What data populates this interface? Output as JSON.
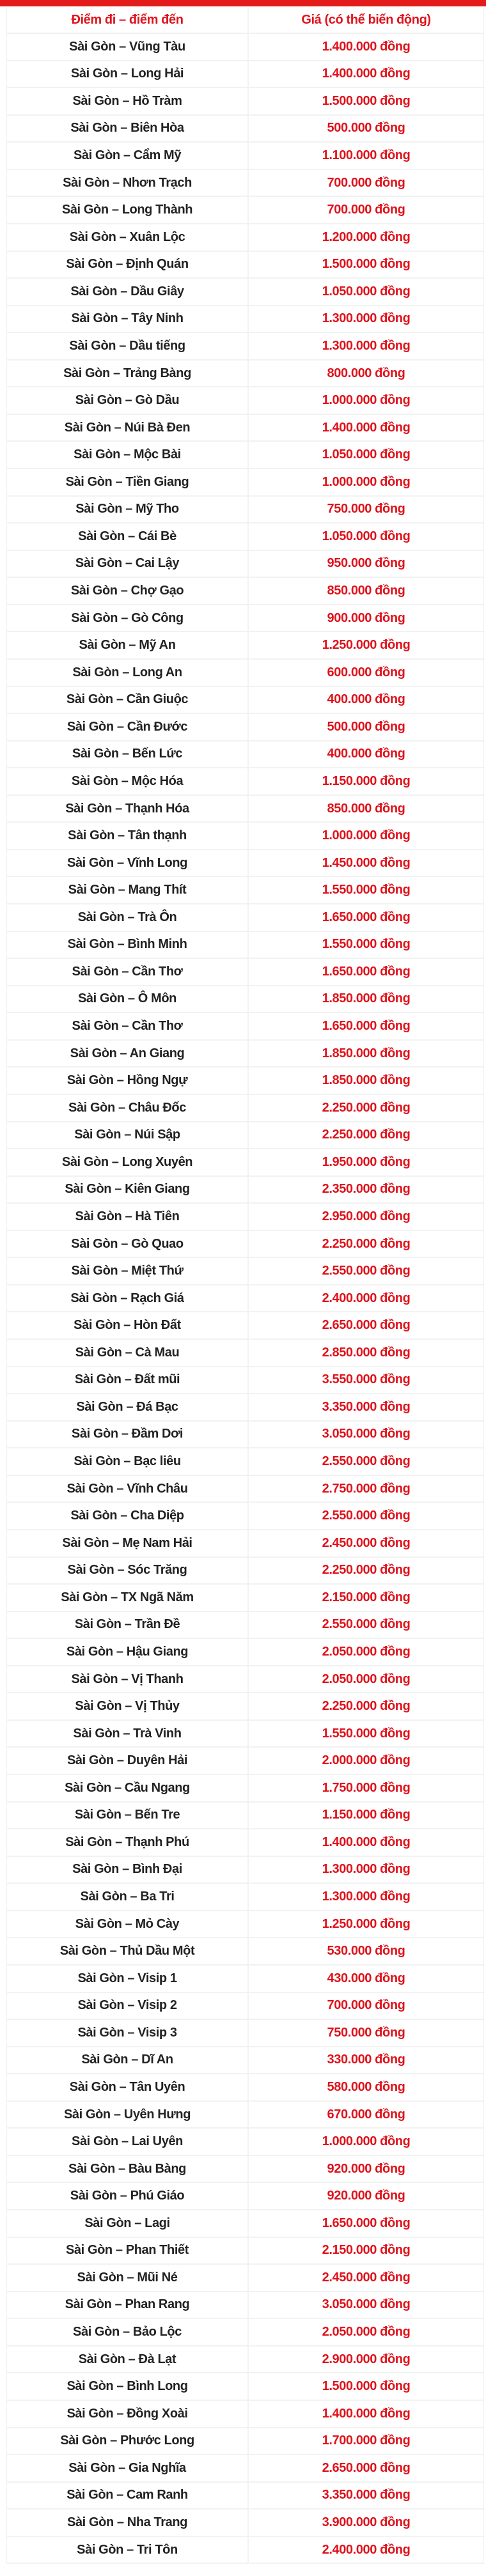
{
  "colors": {
    "accent": "#e31b1b",
    "price": "#e0121b",
    "route": "#222222"
  },
  "table": {
    "headers": {
      "route": "Điểm đi – điểm đến",
      "price": "Giá (có thể biến động)"
    },
    "rows": [
      {
        "route": "Sài Gòn – Vũng Tàu",
        "price": "1.400.000 đồng"
      },
      {
        "route": "Sài Gòn – Long Hải",
        "price": "1.400.000 đồng"
      },
      {
        "route": "Sài Gòn – Hồ Tràm",
        "price": "1.500.000 đồng"
      },
      {
        "route": "Sài Gòn – Biên Hòa",
        "price": "500.000 đồng"
      },
      {
        "route": "Sài Gòn – Cẩm Mỹ",
        "price": "1.100.000 đồng"
      },
      {
        "route": "Sài Gòn – Nhơn Trạch",
        "price": "700.000 đồng"
      },
      {
        "route": "Sài Gòn – Long Thành",
        "price": "700.000 đồng"
      },
      {
        "route": "Sài Gòn – Xuân Lộc",
        "price": "1.200.000 đồng"
      },
      {
        "route": "Sài Gòn – Định Quán",
        "price": "1.500.000 đồng"
      },
      {
        "route": "Sài Gòn – Dầu Giây",
        "price": "1.050.000 đồng"
      },
      {
        "route": "Sài Gòn – Tây Ninh",
        "price": "1.300.000 đồng"
      },
      {
        "route": "Sài Gòn – Dầu tiếng",
        "price": "1.300.000 đồng"
      },
      {
        "route": "Sài Gòn – Trảng Bàng",
        "price": "800.000 đồng"
      },
      {
        "route": "Sài Gòn – Gò Dầu",
        "price": "1.000.000 đồng"
      },
      {
        "route": "Sài Gòn – Núi Bà Đen",
        "price": "1.400.000 đồng"
      },
      {
        "route": "Sài Gòn – Mộc Bài",
        "price": "1.050.000 đồng"
      },
      {
        "route": "Sài Gòn – Tiền Giang",
        "price": "1.000.000 đồng"
      },
      {
        "route": "Sài Gòn – Mỹ Tho",
        "price": "750.000 đồng"
      },
      {
        "route": "Sài Gòn – Cái Bè",
        "price": "1.050.000 đồng"
      },
      {
        "route": "Sài Gòn – Cai Lậy",
        "price": "950.000 đồng"
      },
      {
        "route": "Sài Gòn – Chợ Gạo",
        "price": "850.000 đồng"
      },
      {
        "route": "Sài Gòn – Gò Công",
        "price": "900.000 đồng"
      },
      {
        "route": "Sài Gòn – Mỹ An",
        "price": "1.250.000 đồng"
      },
      {
        "route": "Sài Gòn – Long An",
        "price": "600.000 đồng"
      },
      {
        "route": "Sài Gòn – Cần Giuộc",
        "price": "400.000 đồng"
      },
      {
        "route": "Sài Gòn – Cần Đước",
        "price": "500.000 đồng"
      },
      {
        "route": "Sài Gòn – Bến Lức",
        "price": "400.000 đồng"
      },
      {
        "route": "Sài Gòn – Mộc Hóa",
        "price": "1.150.000 đồng"
      },
      {
        "route": "Sài Gòn – Thạnh Hóa",
        "price": "850.000 đồng"
      },
      {
        "route": "Sài Gòn – Tân thạnh",
        "price": "1.000.000 đồng"
      },
      {
        "route": "Sài Gòn – Vĩnh Long",
        "price": "1.450.000 đồng"
      },
      {
        "route": "Sài Gòn – Mang Thít",
        "price": "1.550.000 đồng"
      },
      {
        "route": "Sài Gòn – Trà Ôn",
        "price": "1.650.000 đồng"
      },
      {
        "route": "Sài Gòn – Bình Minh",
        "price": "1.550.000 đồng"
      },
      {
        "route": "Sài Gòn – Cần Thơ",
        "price": "1.650.000 đồng"
      },
      {
        "route": "Sài Gòn – Ô Môn",
        "price": "1.850.000 đồng"
      },
      {
        "route": "Sài Gòn – Cần Thơ",
        "price": "1.650.000 đồng"
      },
      {
        "route": "Sài Gòn – An Giang",
        "price": "1.850.000 đồng"
      },
      {
        "route": "Sài Gòn – Hồng Ngự",
        "price": "1.850.000 đồng"
      },
      {
        "route": "Sài Gòn – Châu Đốc",
        "price": "2.250.000 đồng"
      },
      {
        "route": "Sài Gòn – Núi Sập",
        "price": "2.250.000 đồng"
      },
      {
        "route": "Sài Gòn – Long Xuyên",
        "price": "1.950.000 đồng"
      },
      {
        "route": "Sài Gòn – Kiên Giang",
        "price": "2.350.000 đồng"
      },
      {
        "route": "Sài Gòn – Hà Tiên",
        "price": "2.950.000 đồng"
      },
      {
        "route": "Sài Gòn – Gò Quao",
        "price": "2.250.000 đồng"
      },
      {
        "route": "Sài Gòn – Miệt Thứ",
        "price": "2.550.000 đồng"
      },
      {
        "route": "Sài Gòn – Rạch Giá",
        "price": "2.400.000 đồng"
      },
      {
        "route": "Sài Gòn – Hòn Đất",
        "price": "2.650.000 đồng"
      },
      {
        "route": "Sài Gòn – Cà Mau",
        "price": "2.850.000 đồng"
      },
      {
        "route": "Sài Gòn – Đất mũi",
        "price": "3.550.000 đồng"
      },
      {
        "route": "Sài Gòn – Đá Bạc",
        "price": "3.350.000 đồng"
      },
      {
        "route": "Sài Gòn – Đầm Dơi",
        "price": "3.050.000 đồng"
      },
      {
        "route": "Sài Gòn – Bạc liêu",
        "price": "2.550.000 đồng"
      },
      {
        "route": "Sài Gòn – Vĩnh Châu",
        "price": "2.750.000 đồng"
      },
      {
        "route": "Sài Gòn – Cha Diệp",
        "price": "2.550.000 đồng"
      },
      {
        "route": "Sài Gòn – Mẹ Nam Hải",
        "price": "2.450.000 đồng"
      },
      {
        "route": "Sài Gòn – Sóc Trăng",
        "price": "2.250.000 đồng"
      },
      {
        "route": "Sài Gòn – TX Ngã Năm",
        "price": "2.150.000 đồng"
      },
      {
        "route": "Sài Gòn – Trần Đề",
        "price": "2.550.000 đồng"
      },
      {
        "route": "Sài Gòn – Hậu Giang",
        "price": "2.050.000 đồng"
      },
      {
        "route": "Sài Gòn – Vị Thanh",
        "price": "2.050.000 đồng"
      },
      {
        "route": "Sài Gòn – Vị Thủy",
        "price": "2.250.000 đồng"
      },
      {
        "route": "Sài Gòn – Trà Vinh",
        "price": "1.550.000 đồng"
      },
      {
        "route": "Sài Gòn – Duyên Hải",
        "price": "2.000.000 đồng"
      },
      {
        "route": "Sài Gòn – Cầu Ngang",
        "price": "1.750.000 đồng"
      },
      {
        "route": "Sài Gòn – Bến Tre",
        "price": "1.150.000 đồng"
      },
      {
        "route": "Sài Gòn – Thạnh Phú",
        "price": "1.400.000 đồng"
      },
      {
        "route": "Sài Gòn – Bình Đại",
        "price": "1.300.000 đồng"
      },
      {
        "route": "Sài Gòn – Ba Tri",
        "price": "1.300.000 đồng"
      },
      {
        "route": "Sài Gòn – Mỏ Cày",
        "price": "1.250.000 đồng"
      },
      {
        "route": "Sài Gòn – Thủ Dầu Một",
        "price": "530.000 đồng"
      },
      {
        "route": "Sài Gòn – Visip 1",
        "price": "430.000 đồng"
      },
      {
        "route": "Sài Gòn – Visip 2",
        "price": "700.000 đồng"
      },
      {
        "route": "Sài Gòn – Visip 3",
        "price": "750.000 đồng"
      },
      {
        "route": "Sài Gòn – Dĩ An",
        "price": "330.000 đồng"
      },
      {
        "route": "Sài Gòn – Tân Uyên",
        "price": "580.000 đồng"
      },
      {
        "route": "Sài Gòn – Uyên Hưng",
        "price": "670.000 đồng"
      },
      {
        "route": "Sài Gòn – Lai Uyên",
        "price": "1.000.000 đồng"
      },
      {
        "route": "Sài Gòn – Bàu Bàng",
        "price": "920.000 đồng"
      },
      {
        "route": "Sài Gòn – Phú Giáo",
        "price": "920.000 đồng"
      },
      {
        "route": "Sài Gòn – Lagi",
        "price": "1.650.000 đồng"
      },
      {
        "route": "Sài Gòn – Phan Thiết",
        "price": "2.150.000 đồng"
      },
      {
        "route": "Sài Gòn – Mũi Né",
        "price": "2.450.000 đồng"
      },
      {
        "route": "Sài Gòn – Phan Rang",
        "price": "3.050.000 đồng"
      },
      {
        "route": "Sài Gòn – Bảo Lộc",
        "price": "2.050.000 đồng"
      },
      {
        "route": "Sài Gòn – Đà Lạt",
        "price": "2.900.000 đồng"
      },
      {
        "route": "Sài Gòn – Bình Long",
        "price": "1.500.000 đồng"
      },
      {
        "route": "Sài Gòn – Đồng Xoài",
        "price": "1.400.000 đồng"
      },
      {
        "route": "Sài Gòn – Phước Long",
        "price": "1.700.000 đồng"
      },
      {
        "route": "Sài Gòn – Gia Nghĩa",
        "price": "2.650.000 đồng"
      },
      {
        "route": "Sài Gòn – Cam Ranh",
        "price": "3.350.000 đồng"
      },
      {
        "route": "Sài Gòn – Nha Trang",
        "price": "3.900.000 đồng"
      },
      {
        "route": "Sài Gòn – Tri Tôn",
        "price": "2.400.000 đồng"
      }
    ]
  }
}
